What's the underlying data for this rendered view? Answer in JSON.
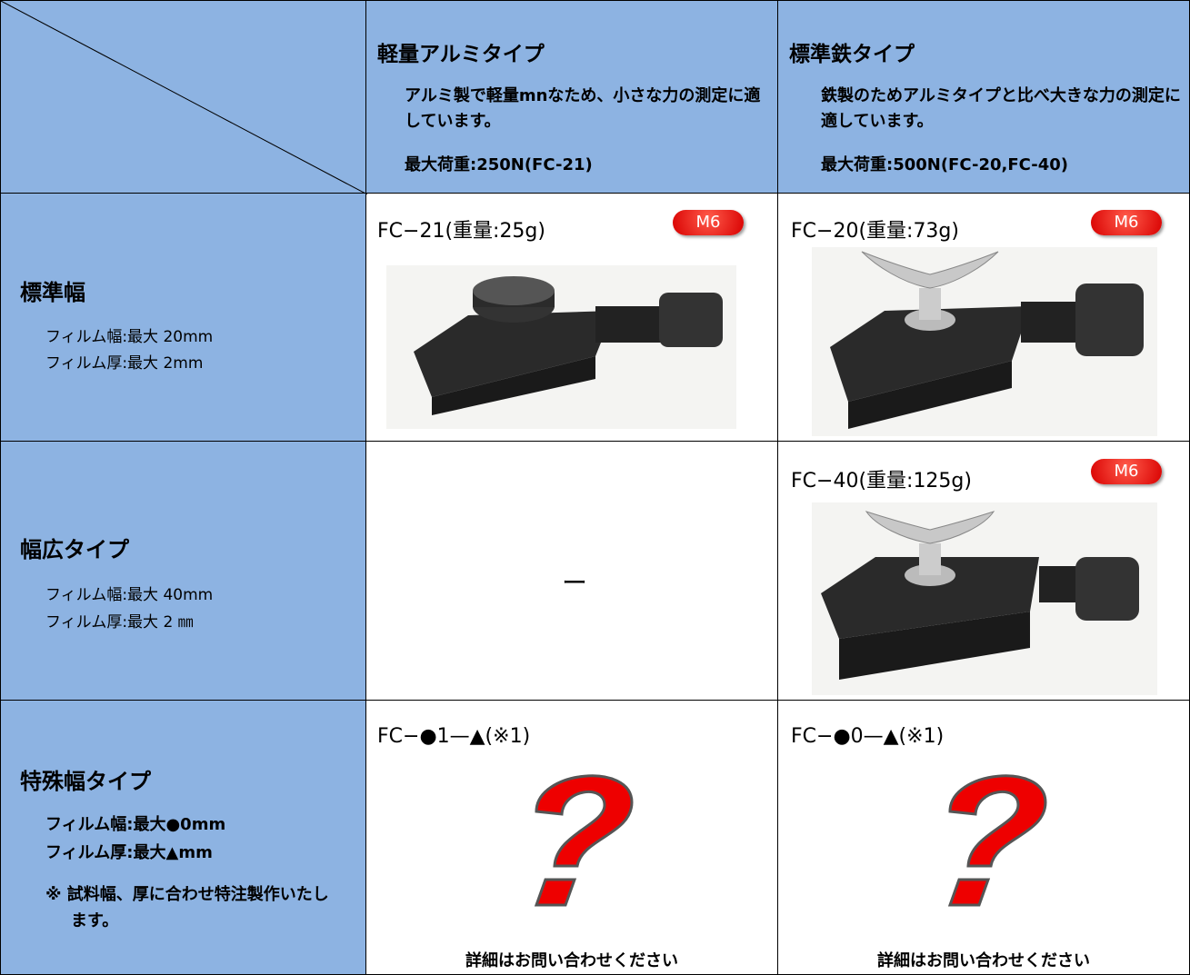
{
  "header": {
    "columns": [
      {
        "title": "軽量アルミタイプ",
        "description": "アルミ製で軽量mnなため、小さな力の測定に適しています。",
        "max_load": "最大荷重:250N(FC-21)"
      },
      {
        "title": "標準鉄タイプ",
        "description": "鉄製のためアルミタイプと比べ大きな力の測定に適しています。",
        "max_load": "最大荷重:500N(FC-20,FC-40)"
      }
    ]
  },
  "rows": [
    {
      "label": "標準幅",
      "specs": [
        "フィルム幅:最大 20mm",
        "フィルム厚:最大 2mm"
      ],
      "cells": [
        {
          "model": "FC−21(重量:25g)",
          "badge": "M6"
        },
        {
          "model": "FC−20(重量:73g)",
          "badge": "M6"
        }
      ]
    },
    {
      "label": "幅広タイプ",
      "specs": [
        "フィルム幅:最大 40mm",
        "フィルム厚:最大 2 ㎜"
      ],
      "cells": [
        {
          "model": "ー"
        },
        {
          "model": "FC−40(重量:125g)",
          "badge": "M6"
        }
      ]
    },
    {
      "label": "特殊幅タイプ",
      "specs": [
        "フィルム幅:最大●0mm",
        "フィルム厚:最大▲mm"
      ],
      "note": "※ 試料幅、厚に合わせ特注製作いたします。",
      "cells": [
        {
          "model": "FC−●1—▲(※1)",
          "note": "詳細はお問い合わせください"
        },
        {
          "model": "FC−●0—▲(※1)",
          "note": "詳細はお問い合わせください"
        }
      ]
    }
  ]
}
